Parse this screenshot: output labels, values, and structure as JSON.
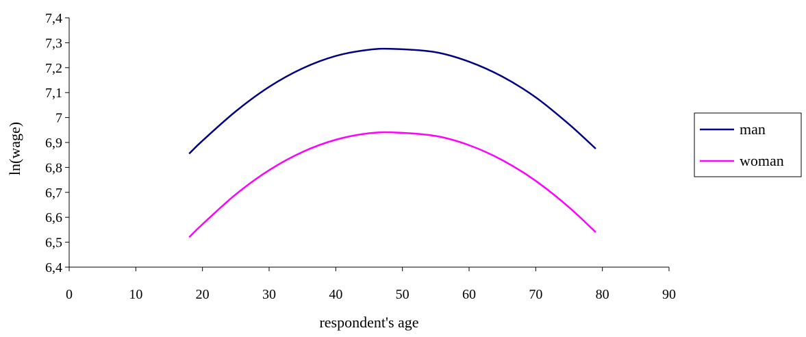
{
  "chart_data": {
    "type": "line",
    "title": "",
    "xlabel": "respondent's age",
    "ylabel": "ln(wage)",
    "xlim": [
      0,
      90
    ],
    "ylim": [
      6.4,
      7.4
    ],
    "x_ticks": [
      "0",
      "10",
      "20",
      "30",
      "40",
      "50",
      "60",
      "70",
      "80",
      "90"
    ],
    "y_ticks": [
      "6,4",
      "6,5",
      "6,6",
      "6,7",
      "6,8",
      "6,9",
      "7",
      "7,1",
      "7,2",
      "7,3",
      "7,4"
    ],
    "grid": false,
    "legend_position": "right",
    "x": [
      18,
      20,
      25,
      30,
      35,
      40,
      45,
      49,
      55,
      60,
      65,
      70,
      75,
      79
    ],
    "series": [
      {
        "name": "man",
        "color": "#000080",
        "values": [
          6.855,
          6.907,
          7.025,
          7.123,
          7.197,
          7.247,
          7.272,
          7.275,
          7.262,
          7.224,
          7.164,
          7.081,
          6.973,
          6.875
        ]
      },
      {
        "name": "woman",
        "color": "#ff00ff",
        "values": [
          6.52,
          6.572,
          6.692,
          6.789,
          6.862,
          6.911,
          6.937,
          6.94,
          6.926,
          6.889,
          6.829,
          6.746,
          6.64,
          6.54
        ]
      }
    ]
  }
}
